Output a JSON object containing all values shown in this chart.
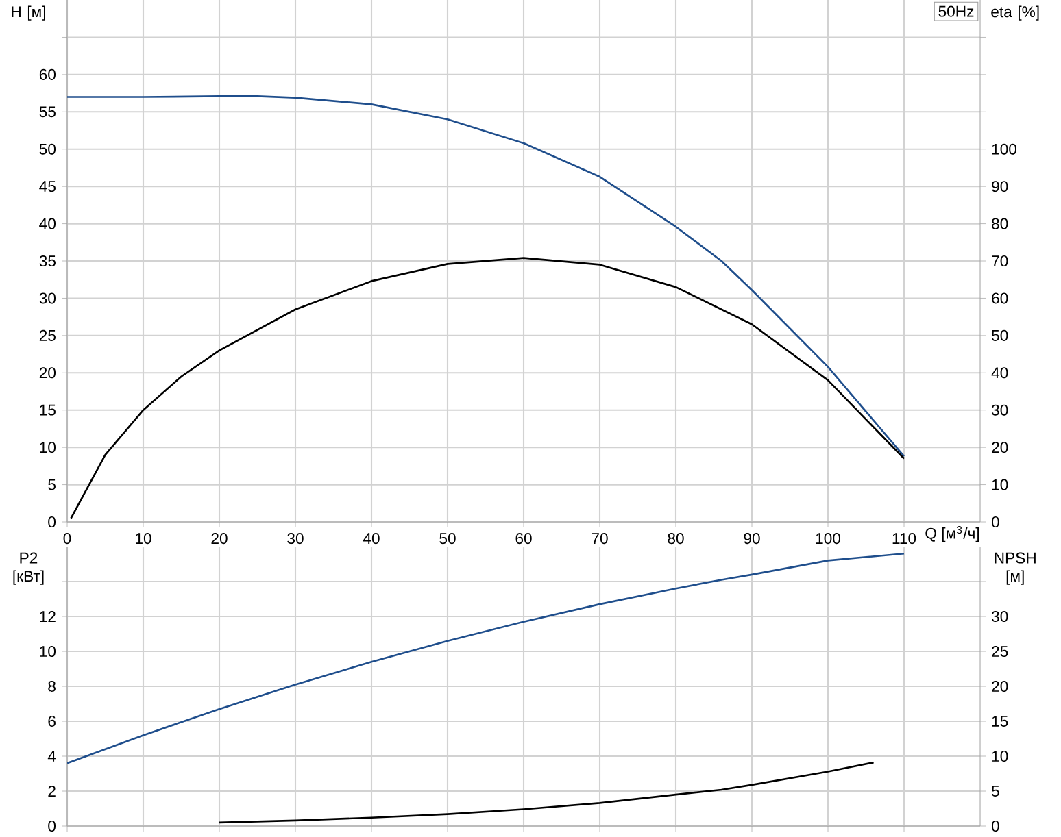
{
  "chart_data": [
    {
      "type": "line",
      "xlabel": "Q [м$^{3}$/ч]",
      "ylabel": "H [м]",
      "y2label": "eta [%]",
      "annotations": [
        "50Hz"
      ],
      "xlim": [
        0,
        120
      ],
      "xticks": [
        0,
        10,
        20,
        30,
        40,
        50,
        60,
        70,
        80,
        90,
        100,
        110
      ],
      "ylim": [
        0,
        70
      ],
      "yticks": [
        0,
        5,
        10,
        15,
        20,
        25,
        30,
        35,
        40,
        45,
        50,
        55,
        60,
        {
          "value": 65,
          "label": null
        }
      ],
      "y2lim": [
        0,
        140
      ],
      "y2ticks": [
        0,
        10,
        20,
        30,
        40,
        50,
        60,
        70,
        80,
        90,
        100,
        {
          "value": 110,
          "label": null
        },
        {
          "value": 120,
          "label": null
        },
        {
          "value": 130,
          "label": null
        }
      ],
      "grid": true,
      "marker": "none",
      "line_style": "solid",
      "series": [
        {
          "color": "#1f4e8c",
          "x": [
            0,
            10,
            20,
            25,
            30,
            40,
            50,
            60,
            70,
            80,
            86,
            90,
            100,
            110
          ],
          "values": [
            57,
            57,
            57.1,
            57.1,
            56.9,
            56,
            54,
            50.8,
            46.3,
            39.6,
            35,
            31.1,
            20.8,
            8.8
          ]
        },
        {
          "color": "#000000",
          "axis": "y2",
          "x": [
            0.5,
            5,
            10,
            15,
            20,
            30,
            40,
            50,
            60,
            70,
            80,
            90,
            100,
            110
          ],
          "values": [
            1,
            18,
            30,
            39,
            46,
            57,
            64.6,
            69.2,
            70.8,
            69,
            63,
            53,
            38,
            17
          ]
        }
      ]
    },
    {
      "type": "line",
      "ylabel": "P2 [кВт]",
      "y2label": "NPSH [м]",
      "tick_labels": "y",
      "xlim": [
        0,
        120
      ],
      "xticks": [
        0,
        10,
        20,
        30,
        40,
        50,
        60,
        70,
        80,
        90,
        100,
        110
      ],
      "ylim": [
        0,
        16
      ],
      "yticks": [
        0,
        2,
        4,
        6,
        8,
        10,
        12,
        {
          "value": 14,
          "label": null
        }
      ],
      "y2lim": [
        0,
        40
      ],
      "y2ticks": [
        0,
        5,
        10,
        15,
        20,
        25,
        30,
        {
          "value": 35,
          "label": null
        }
      ],
      "grid": true,
      "marker": "none",
      "line_style": "solid",
      "series": [
        {
          "color": "#1f4e8c",
          "x": [
            0,
            10,
            20,
            30,
            40,
            50,
            60,
            70,
            80,
            86,
            90,
            100,
            110
          ],
          "values": [
            3.6,
            5.2,
            6.7,
            8.1,
            9.4,
            10.6,
            11.7,
            12.7,
            13.6,
            14.1,
            14.4,
            15.2,
            15.6
          ]
        },
        {
          "color": "#000000",
          "axis": "y2",
          "x": [
            20,
            30,
            40,
            50,
            60,
            70,
            80,
            86,
            90,
            100,
            106
          ],
          "values": [
            0.5,
            0.8,
            1.2,
            1.7,
            2.4,
            3.3,
            4.5,
            5.2,
            5.9,
            7.8,
            9.1
          ]
        }
      ]
    }
  ]
}
